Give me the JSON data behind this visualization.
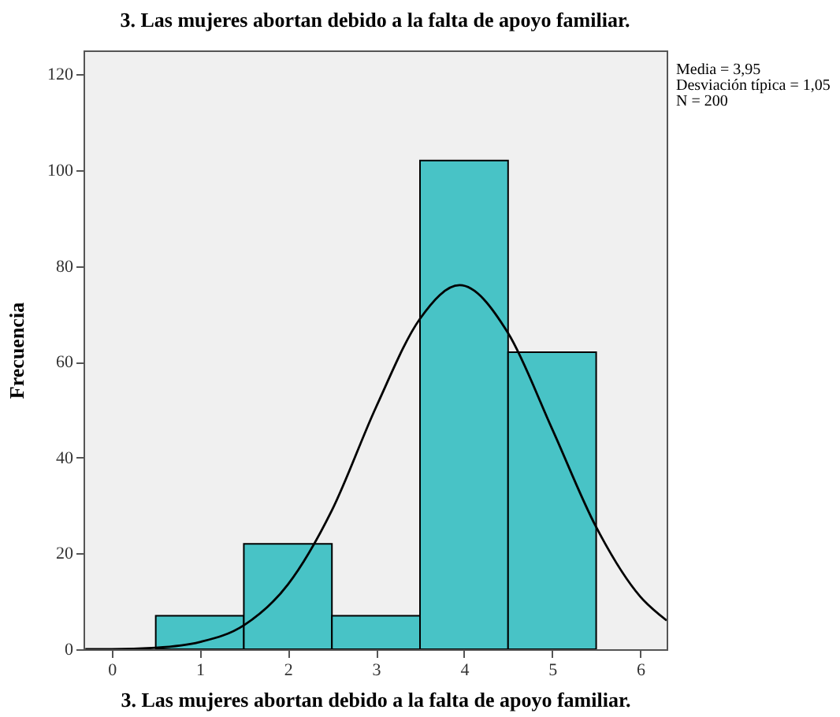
{
  "chart_data": {
    "type": "histogram",
    "title": "3. Las mujeres abortan debido a la falta de apoyo familiar.",
    "xlabel": "3. Las mujeres abortan debido a la falta de apoyo familiar.",
    "ylabel": "Frecuencia",
    "bins": [
      0.5,
      1.5,
      2.5,
      3.5,
      4.5,
      5.5
    ],
    "values": [
      7,
      22,
      7,
      102,
      62
    ],
    "color": "#48c3c6",
    "series": [
      {
        "type": "line",
        "color": "#000000",
        "x": [
          -0.3,
          0,
          0.5,
          1,
          1.5,
          2,
          2.5,
          3,
          3.5,
          3.95,
          4.5,
          5,
          5.5,
          6,
          6.3
        ],
        "values": [
          0,
          0,
          0.3,
          1.5,
          5,
          13.5,
          29,
          50.5,
          69,
          76,
          66,
          46,
          25.5,
          11,
          6
        ]
      }
    ],
    "xlim": [
      -0.32,
      6.3
    ],
    "xticks": [
      0,
      1,
      2,
      3,
      4,
      5,
      6
    ],
    "ylim": [
      0,
      125
    ],
    "yticks": [
      0,
      20,
      40,
      60,
      80,
      100,
      120
    ],
    "grid": false,
    "annotations": [
      "Media = 3,95",
      "Desviación típica = 1,05",
      "N = 200"
    ]
  }
}
